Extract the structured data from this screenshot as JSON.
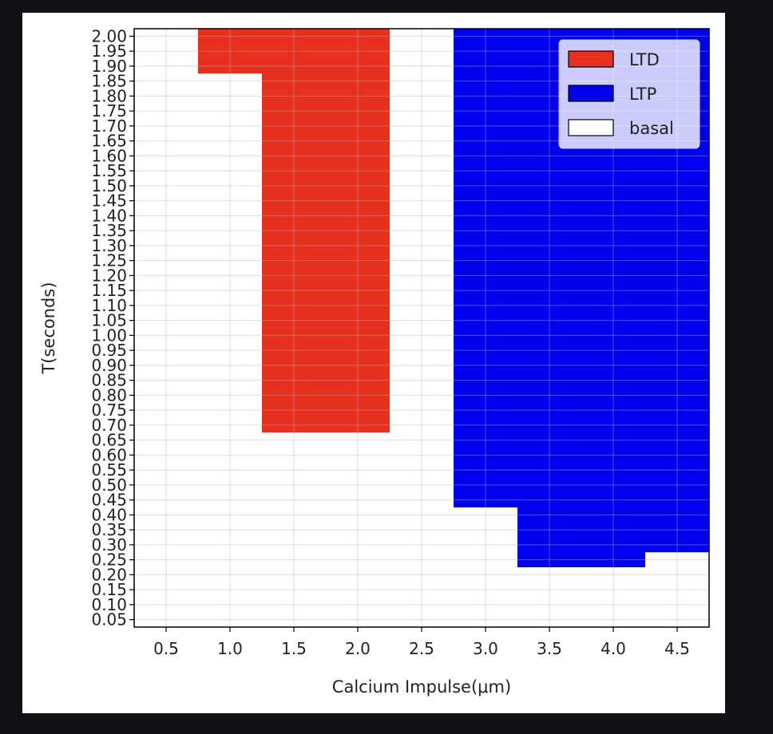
{
  "chart_data": {
    "type": "heatmap",
    "title": "",
    "xlabel": "Calcium Impulse(μm)",
    "ylabel": "T(seconds)",
    "x_ticks": [
      "0.5",
      "1.0",
      "1.5",
      "2.0",
      "2.5",
      "3.0",
      "3.5",
      "4.0",
      "4.5"
    ],
    "y_ticks": [
      "0.05",
      "0.10",
      "0.15",
      "0.20",
      "0.25",
      "0.30",
      "0.35",
      "0.40",
      "0.45",
      "0.50",
      "0.55",
      "0.60",
      "0.65",
      "0.70",
      "0.75",
      "0.80",
      "0.85",
      "0.90",
      "0.95",
      "1.00",
      "1.05",
      "1.10",
      "1.15",
      "1.20",
      "1.25",
      "1.30",
      "1.35",
      "1.40",
      "1.45",
      "1.50",
      "1.55",
      "1.60",
      "1.65",
      "1.70",
      "1.75",
      "1.80",
      "1.85",
      "1.90",
      "1.95",
      "2.00"
    ],
    "xlim": [
      0.25,
      4.75
    ],
    "ylim": [
      0.025,
      2.025
    ],
    "grid": true,
    "legend_position": "top-right",
    "classes": [
      {
        "name": "LTD",
        "color": "#e8301f"
      },
      {
        "name": "LTP",
        "color": "#0000ee"
      },
      {
        "name": "basal",
        "color": "#ffffff"
      }
    ],
    "regions": [
      {
        "class": "LTD",
        "x": [
          0.75,
          1.25
        ],
        "t": [
          1.875,
          2.025
        ]
      },
      {
        "class": "LTD",
        "x": [
          1.25,
          2.25
        ],
        "t": [
          0.675,
          2.025
        ]
      },
      {
        "class": "LTP",
        "x": [
          2.75,
          3.25
        ],
        "t": [
          0.425,
          2.025
        ]
      },
      {
        "class": "LTP",
        "x": [
          3.25,
          4.25
        ],
        "t": [
          0.225,
          2.025
        ]
      },
      {
        "class": "LTP",
        "x": [
          4.25,
          4.75
        ],
        "t": [
          0.275,
          2.025
        ]
      }
    ]
  }
}
